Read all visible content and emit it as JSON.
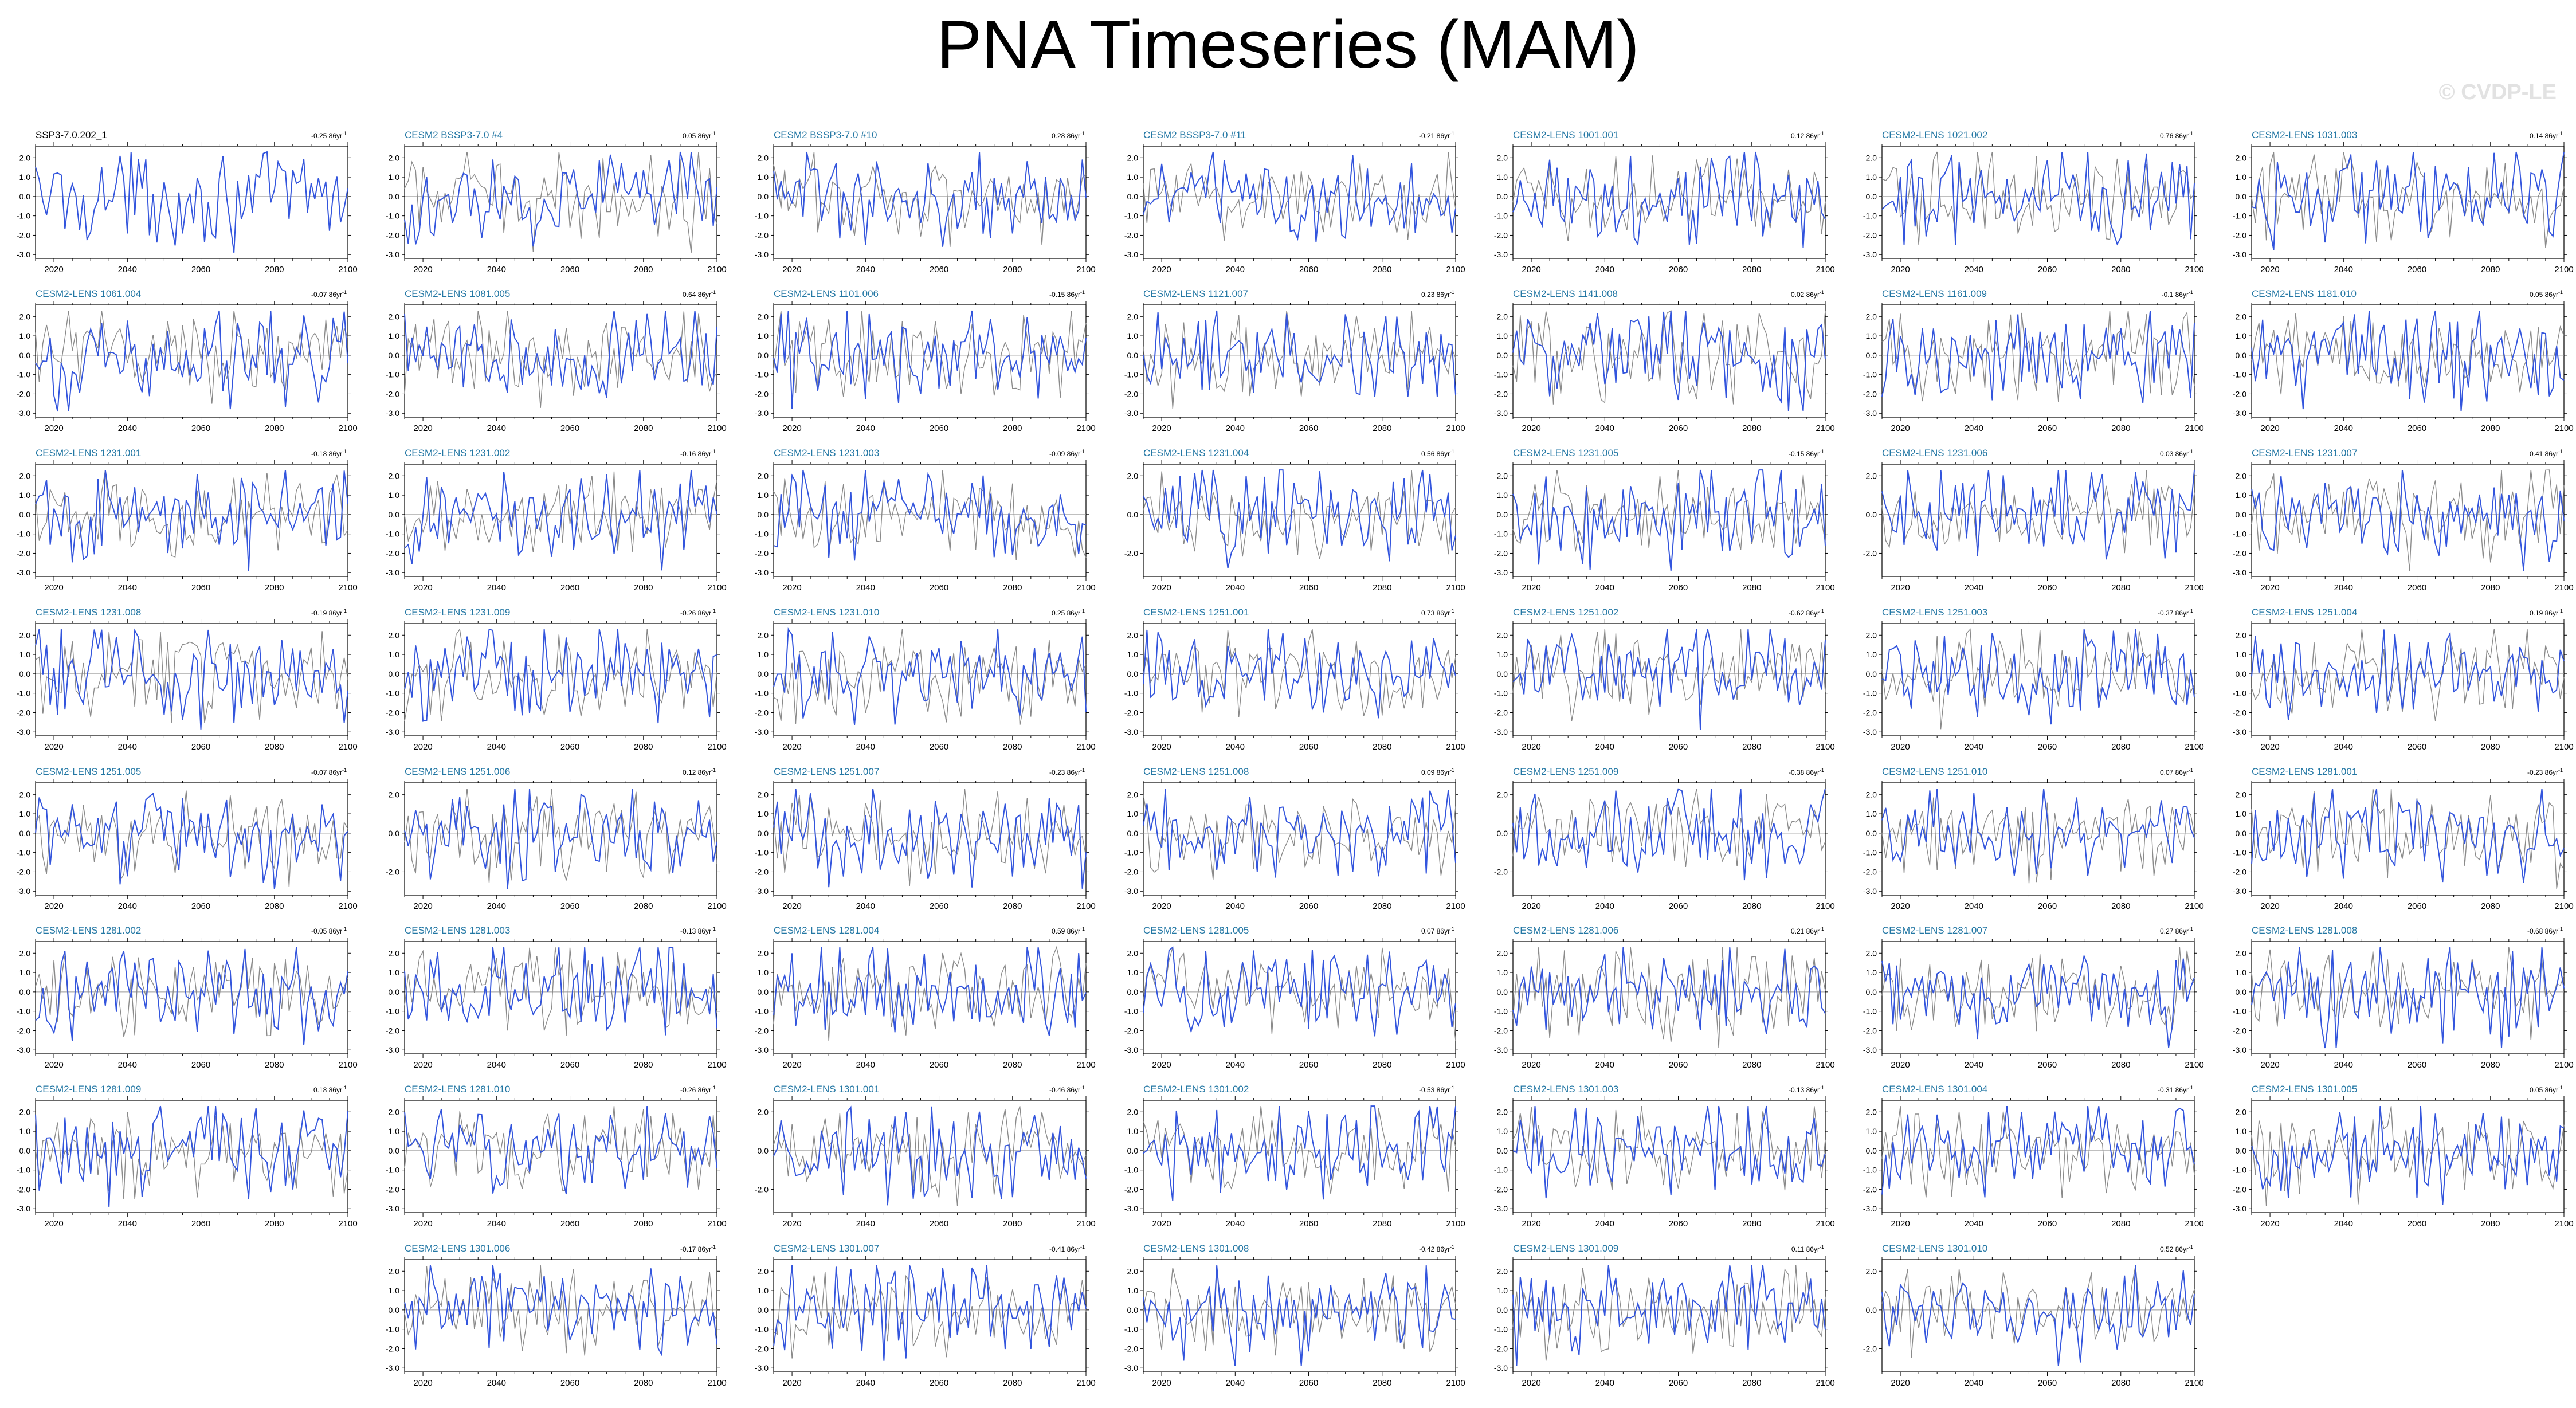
{
  "title": "PNA Timeseries (MAM)",
  "watermark": "© CVDP-LE",
  "colors": {
    "ensemble_line": "#3355dd",
    "reference_line": "#8a8a8a",
    "panel_title": "#2377a4",
    "reference_title": "#000000",
    "zero_line": "#999999"
  },
  "chart_data": {
    "type": "line",
    "xlim": [
      2015,
      2100
    ],
    "xticks": [
      2020,
      2040,
      2060,
      2080,
      2100
    ],
    "trend_unit": "86yr",
    "panels": [
      {
        "title": "SSP3-7.0.202_1",
        "trend": "-0.25",
        "reference": true,
        "yticks": [
          "2.0",
          "1.0",
          "0.0",
          "-1.0",
          "-2.0",
          "-3.0"
        ]
      },
      {
        "title": "CESM2 BSSP3-7.0 #4",
        "trend": "0.05",
        "yticks": [
          "2.0",
          "1.0",
          "0.0",
          "-1.0",
          "-2.0",
          "-3.0"
        ]
      },
      {
        "title": "CESM2 BSSP3-7.0 #10",
        "trend": "0.28",
        "yticks": [
          "2.0",
          "1.0",
          "0.0",
          "-1.0",
          "-2.0",
          "-3.0"
        ]
      },
      {
        "title": "CESM2 BSSP3-7.0 #11",
        "trend": "-0.21",
        "yticks": [
          "2.0",
          "1.0",
          "0.0",
          "-1.0",
          "-2.0",
          "-3.0"
        ]
      },
      {
        "title": "CESM2-LENS 1001.001",
        "trend": "0.12",
        "yticks": [
          "2.0",
          "1.0",
          "0.0",
          "-1.0",
          "-2.0",
          "-3.0"
        ]
      },
      {
        "title": "CESM2-LENS 1021.002",
        "trend": "0.76",
        "yticks": [
          "2.0",
          "1.0",
          "0.0",
          "-1.0",
          "-2.0",
          "-3.0"
        ]
      },
      {
        "title": "CESM2-LENS 1031.003",
        "trend": "0.14",
        "yticks": [
          "2.0",
          "1.0",
          "0.0",
          "-1.0",
          "-2.0",
          "-3.0"
        ]
      },
      {
        "title": "CESM2-LENS 1061.004",
        "trend": "-0.07",
        "yticks": [
          "2.0",
          "1.0",
          "0.0",
          "-1.0",
          "-2.0",
          "-3.0"
        ]
      },
      {
        "title": "CESM2-LENS 1081.005",
        "trend": "0.64",
        "yticks": [
          "2.0",
          "1.0",
          "0.0",
          "-1.0",
          "-2.0",
          "-3.0"
        ]
      },
      {
        "title": "CESM2-LENS 1101.006",
        "trend": "-0.15",
        "yticks": [
          "2.0",
          "1.0",
          "0.0",
          "-1.0",
          "-2.0",
          "-3.0"
        ]
      },
      {
        "title": "CESM2-LENS 1121.007",
        "trend": "0.23",
        "yticks": [
          "2.0",
          "1.0",
          "0.0",
          "-1.0",
          "-2.0",
          "-3.0"
        ]
      },
      {
        "title": "CESM2-LENS 1141.008",
        "trend": "0.02",
        "yticks": [
          "2.0",
          "1.0",
          "0.0",
          "-1.0",
          "-2.0",
          "-3.0"
        ]
      },
      {
        "title": "CESM2-LENS 1161.009",
        "trend": "-0.1",
        "yticks": [
          "2.0",
          "1.0",
          "0.0",
          "-1.0",
          "-2.0",
          "-3.0"
        ]
      },
      {
        "title": "CESM2-LENS 1181.010",
        "trend": "0.05",
        "yticks": [
          "2.0",
          "1.0",
          "0.0",
          "-1.0",
          "-2.0",
          "-3.0"
        ]
      },
      {
        "title": "CESM2-LENS 1231.001",
        "trend": "-0.18",
        "yticks": [
          "2.0",
          "1.0",
          "0.0",
          "-1.0",
          "-2.0",
          "-3.0"
        ]
      },
      {
        "title": "CESM2-LENS 1231.002",
        "trend": "-0.16",
        "yticks": [
          "2.0",
          "1.0",
          "0.0",
          "-1.0",
          "-2.0",
          "-3.0"
        ]
      },
      {
        "title": "CESM2-LENS 1231.003",
        "trend": "-0.09",
        "yticks": [
          "2.0",
          "1.0",
          "0.0",
          "-1.0",
          "-2.0",
          "-3.0"
        ]
      },
      {
        "title": "CESM2-LENS 1231.004",
        "trend": "0.56",
        "yticks": [
          "2.0",
          "0.0",
          "-2.0"
        ]
      },
      {
        "title": "CESM2-LENS 1231.005",
        "trend": "-0.15",
        "yticks": [
          "2.0",
          "1.0",
          "0.0",
          "-1.0",
          "-2.0",
          "-3.0"
        ]
      },
      {
        "title": "CESM2-LENS 1231.006",
        "trend": "0.03",
        "yticks": [
          "2.0",
          "0.0",
          "-2.0"
        ]
      },
      {
        "title": "CESM2-LENS 1231.007",
        "trend": "0.41",
        "yticks": [
          "2.0",
          "1.0",
          "0.0",
          "-1.0",
          "-2.0",
          "-3.0"
        ]
      },
      {
        "title": "CESM2-LENS 1231.008",
        "trend": "-0.19",
        "yticks": [
          "2.0",
          "1.0",
          "0.0",
          "-1.0",
          "-2.0",
          "-3.0"
        ]
      },
      {
        "title": "CESM2-LENS 1231.009",
        "trend": "-0.26",
        "yticks": [
          "2.0",
          "1.0",
          "0.0",
          "-1.0",
          "-2.0",
          "-3.0"
        ]
      },
      {
        "title": "CESM2-LENS 1231.010",
        "trend": "0.25",
        "yticks": [
          "2.0",
          "1.0",
          "0.0",
          "-1.0",
          "-2.0",
          "-3.0"
        ]
      },
      {
        "title": "CESM2-LENS 1251.001",
        "trend": "0.73",
        "yticks": [
          "2.0",
          "1.0",
          "0.0",
          "-1.0",
          "-2.0",
          "-3.0"
        ]
      },
      {
        "title": "CESM2-LENS 1251.002",
        "trend": "-0.62",
        "yticks": [
          "2.0",
          "1.0",
          "0.0",
          "-1.0",
          "-2.0",
          "-3.0"
        ]
      },
      {
        "title": "CESM2-LENS 1251.003",
        "trend": "-0.37",
        "yticks": [
          "2.0",
          "1.0",
          "0.0",
          "-1.0",
          "-2.0",
          "-3.0"
        ]
      },
      {
        "title": "CESM2-LENS 1251.004",
        "trend": "0.19",
        "yticks": [
          "2.0",
          "1.0",
          "0.0",
          "-1.0",
          "-2.0",
          "-3.0"
        ]
      },
      {
        "title": "CESM2-LENS 1251.005",
        "trend": "-0.07",
        "yticks": [
          "2.0",
          "1.0",
          "0.0",
          "-1.0",
          "-2.0",
          "-3.0"
        ]
      },
      {
        "title": "CESM2-LENS 1251.006",
        "trend": "0.12",
        "yticks": [
          "2.0",
          "0.0",
          "-2.0"
        ]
      },
      {
        "title": "CESM2-LENS 1251.007",
        "trend": "-0.23",
        "yticks": [
          "2.0",
          "1.0",
          "0.0",
          "-1.0",
          "-2.0",
          "-3.0"
        ]
      },
      {
        "title": "CESM2-LENS 1251.008",
        "trend": "0.09",
        "yticks": [
          "2.0",
          "1.0",
          "0.0",
          "-1.0",
          "-2.0",
          "-3.0"
        ]
      },
      {
        "title": "CESM2-LENS 1251.009",
        "trend": "-0.38",
        "yticks": [
          "2.0",
          "0.0",
          "-2.0"
        ]
      },
      {
        "title": "CESM2-LENS 1251.010",
        "trend": "0.07",
        "yticks": [
          "2.0",
          "1.0",
          "0.0",
          "-1.0",
          "-2.0",
          "-3.0"
        ]
      },
      {
        "title": "CESM2-LENS 1281.001",
        "trend": "-0.23",
        "yticks": [
          "2.0",
          "1.0",
          "0.0",
          "-1.0",
          "-2.0",
          "-3.0"
        ]
      },
      {
        "title": "CESM2-LENS 1281.002",
        "trend": "-0.05",
        "yticks": [
          "2.0",
          "1.0",
          "0.0",
          "-1.0",
          "-2.0",
          "-3.0"
        ]
      },
      {
        "title": "CESM2-LENS 1281.003",
        "trend": "-0.13",
        "yticks": [
          "2.0",
          "1.0",
          "0.0",
          "-1.0",
          "-2.0",
          "-3.0"
        ]
      },
      {
        "title": "CESM2-LENS 1281.004",
        "trend": "0.59",
        "yticks": [
          "2.0",
          "1.0",
          "0.0",
          "-1.0",
          "-2.0",
          "-3.0"
        ]
      },
      {
        "title": "CESM2-LENS 1281.005",
        "trend": "0.07",
        "yticks": [
          "2.0",
          "1.0",
          "0.0",
          "-1.0",
          "-2.0",
          "-3.0"
        ]
      },
      {
        "title": "CESM2-LENS 1281.006",
        "trend": "0.21",
        "yticks": [
          "2.0",
          "1.0",
          "0.0",
          "-1.0",
          "-2.0",
          "-3.0"
        ]
      },
      {
        "title": "CESM2-LENS 1281.007",
        "trend": "0.27",
        "yticks": [
          "2.0",
          "1.0",
          "0.0",
          "-1.0",
          "-2.0",
          "-3.0"
        ]
      },
      {
        "title": "CESM2-LENS 1281.008",
        "trend": "-0.68",
        "yticks": [
          "2.0",
          "1.0",
          "0.0",
          "-1.0",
          "-2.0",
          "-3.0"
        ]
      },
      {
        "title": "CESM2-LENS 1281.009",
        "trend": "0.18",
        "yticks": [
          "2.0",
          "1.0",
          "0.0",
          "-1.0",
          "-2.0",
          "-3.0"
        ]
      },
      {
        "title": "CESM2-LENS 1281.010",
        "trend": "-0.26",
        "yticks": [
          "2.0",
          "1.0",
          "0.0",
          "-1.0",
          "-2.0",
          "-3.0"
        ]
      },
      {
        "title": "CESM2-LENS 1301.001",
        "trend": "-0.46",
        "yticks": [
          "2.0",
          "0.0",
          "-2.0"
        ]
      },
      {
        "title": "CESM2-LENS 1301.002",
        "trend": "-0.53",
        "yticks": [
          "2.0",
          "1.0",
          "0.0",
          "-1.0",
          "-2.0",
          "-3.0"
        ]
      },
      {
        "title": "CESM2-LENS 1301.003",
        "trend": "-0.13",
        "yticks": [
          "2.0",
          "1.0",
          "0.0",
          "-1.0",
          "-2.0",
          "-3.0"
        ]
      },
      {
        "title": "CESM2-LENS 1301.004",
        "trend": "-0.31",
        "yticks": [
          "2.0",
          "1.0",
          "0.0",
          "-1.0",
          "-2.0",
          "-3.0"
        ]
      },
      {
        "title": "CESM2-LENS 1301.005",
        "trend": "0.05",
        "yticks": [
          "2.0",
          "1.0",
          "0.0",
          "-1.0",
          "-2.0",
          "-3.0"
        ]
      },
      {
        "title": "CESM2-LENS 1301.006",
        "trend": "-0.17",
        "yticks": [
          "2.0",
          "1.0",
          "0.0",
          "-1.0",
          "-2.0",
          "-3.0"
        ]
      },
      {
        "title": "CESM2-LENS 1301.007",
        "trend": "-0.41",
        "yticks": [
          "2.0",
          "1.0",
          "0.0",
          "-1.0",
          "-2.0",
          "-3.0"
        ]
      },
      {
        "title": "CESM2-LENS 1301.008",
        "trend": "-0.42",
        "yticks": [
          "2.0",
          "1.0",
          "0.0",
          "-1.0",
          "-2.0",
          "-3.0"
        ]
      },
      {
        "title": "CESM2-LENS 1301.009",
        "trend": "0.11",
        "yticks": [
          "2.0",
          "1.0",
          "0.0",
          "-1.0",
          "-2.0",
          "-3.0"
        ]
      },
      {
        "title": "CESM2-LENS 1301.010",
        "trend": "0.52",
        "yticks": [
          "2.0",
          "0.0",
          "-2.0"
        ]
      }
    ]
  }
}
